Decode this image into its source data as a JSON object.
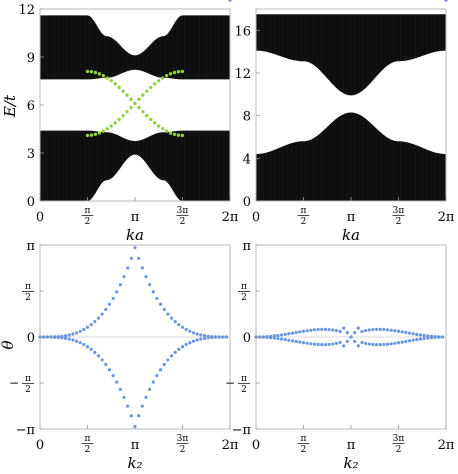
{
  "chart_data": [
    {
      "type": "band_structure",
      "xlabel": "ka",
      "ylabel": "E/t",
      "xlim": [
        0,
        6.2832
      ],
      "ylim": [
        0,
        12
      ],
      "xticks": [
        "0",
        "π/2",
        "π",
        "3π/2",
        "2π"
      ],
      "yticks": [
        "0",
        "3",
        "6",
        "9",
        "12"
      ],
      "bands": [
        {
          "name": "lower bulk",
          "color": "#111111",
          "x": [
            0,
            1.57,
            2.2,
            3.1416,
            4.08,
            4.71,
            6.2832
          ],
          "lower": [
            0,
            0,
            1.3,
            2.9,
            1.3,
            0,
            0
          ],
          "upper": [
            4.4,
            4.4,
            4.3,
            3.75,
            4.3,
            4.4,
            4.4
          ]
        },
        {
          "name": "upper bulk",
          "color": "#111111",
          "x": [
            0,
            1.57,
            2.2,
            3.1416,
            4.08,
            4.71,
            6.2832
          ],
          "lower": [
            7.6,
            7.6,
            7.7,
            8.2,
            7.7,
            7.6,
            7.6
          ],
          "upper": [
            11.6,
            11.6,
            10.3,
            9.1,
            10.3,
            11.6,
            11.6
          ]
        }
      ],
      "edge_states": {
        "color": "#90d23e",
        "x_range": [
          1.57,
          4.71
        ],
        "low": 4.1,
        "high": 8.1
      }
    },
    {
      "type": "band_structure",
      "xlabel": "ka",
      "ylabel": "",
      "xlim": [
        0,
        6.2832
      ],
      "ylim": [
        0,
        18
      ],
      "xticks": [
        "0",
        "π/2",
        "π",
        "3π/2",
        "2π"
      ],
      "yticks": [
        "0",
        "4",
        "8",
        "12",
        "16"
      ],
      "bands": [
        {
          "name": "lower bulk",
          "color": "#111111",
          "x": [
            0,
            1.57,
            3.1416,
            4.71,
            6.2832
          ],
          "lower": [
            0,
            0,
            0,
            0,
            0
          ],
          "upper": [
            4.4,
            5.6,
            8.3,
            5.6,
            4.4
          ]
        },
        {
          "name": "upper bulk",
          "color": "#111111",
          "x": [
            0,
            1.57,
            3.1416,
            4.71,
            6.2832
          ],
          "lower": [
            14.1,
            13.1,
            9.9,
            13.1,
            14.1
          ],
          "upper": [
            17.5,
            17.5,
            17.5,
            17.5,
            17.5
          ]
        }
      ]
    },
    {
      "type": "scatter",
      "xlabel": "k₂",
      "ylabel": "θ",
      "xlim": [
        0,
        6.2832
      ],
      "ylim": [
        -3.1416,
        3.1416
      ],
      "xticks": [
        "0",
        "π/2",
        "π",
        "3π/2",
        "2π"
      ],
      "yticks": [
        "π",
        "π/2",
        "0",
        "−π/2",
        "−π"
      ],
      "color": "#6a98de",
      "shape": "astroid",
      "peak": 3.05
    },
    {
      "type": "scatter",
      "xlabel": "k₂",
      "ylabel": "",
      "xlim": [
        0,
        6.2832
      ],
      "ylim": [
        -3.1416,
        3.1416
      ],
      "xticks": [
        "0",
        "π/2",
        "π",
        "3π/2",
        "2π"
      ],
      "yticks": [
        "π",
        "π/2",
        "0",
        "−π/2",
        "−π"
      ],
      "color": "#6a98de",
      "shape": "crossing",
      "peak": 0.35
    }
  ]
}
